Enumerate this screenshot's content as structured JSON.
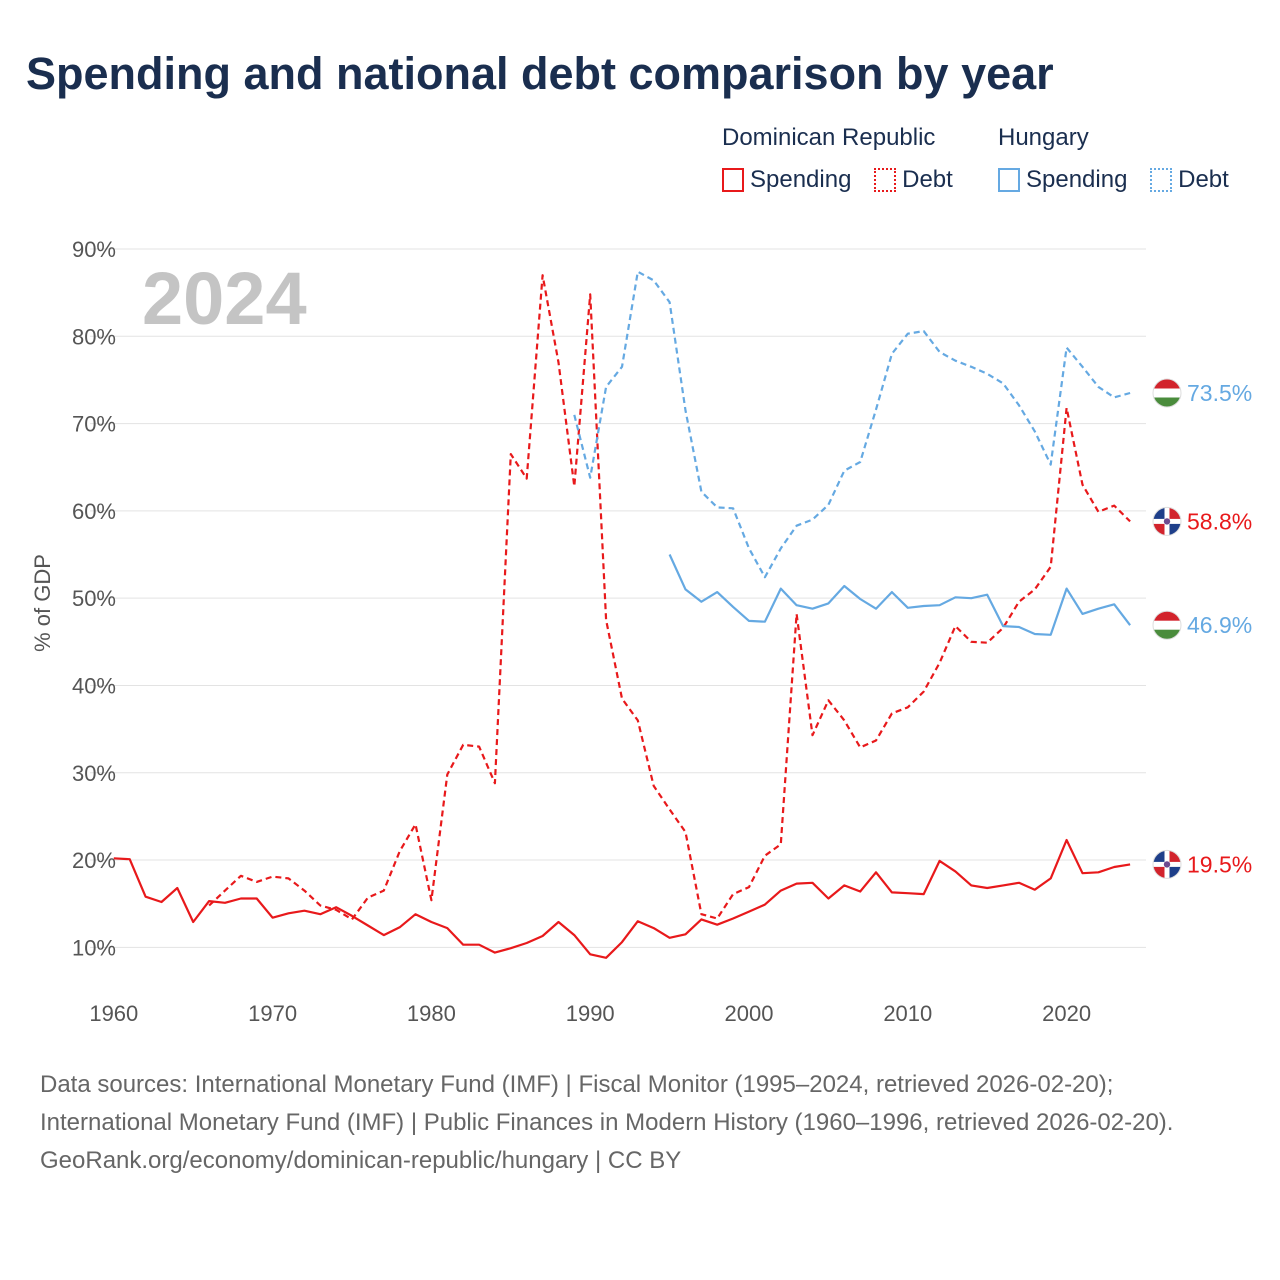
{
  "title": "Spending and national debt comparison by year",
  "year_watermark": "2024",
  "colors": {
    "dominican": "#e8191b",
    "hungary": "#65a9e2",
    "grid": "#e3e3e3",
    "axis_text": "#555555",
    "watermark": "#c4c4c4"
  },
  "legend": {
    "groups": [
      {
        "name": "Dominican Republic",
        "color": "#e8191b",
        "items": [
          {
            "label": "Spending",
            "style": "solid"
          },
          {
            "label": "Debt",
            "style": "dotted"
          }
        ]
      },
      {
        "name": "Hungary",
        "color": "#65a9e2",
        "items": [
          {
            "label": "Spending",
            "style": "solid"
          },
          {
            "label": "Debt",
            "style": "dotted"
          }
        ]
      }
    ]
  },
  "end_labels": [
    {
      "text": "73.5%",
      "value": 73.5,
      "color": "#65a9e2",
      "flag": "hungary-flag-icon"
    },
    {
      "text": "58.8%",
      "value": 58.8,
      "color": "#e8191b",
      "flag": "dominican-republic-flag-icon"
    },
    {
      "text": "46.9%",
      "value": 46.9,
      "color": "#65a9e2",
      "flag": "hungary-flag-icon"
    },
    {
      "text": "19.5%",
      "value": 19.5,
      "color": "#e8191b",
      "flag": "dominican-republic-flag-icon"
    }
  ],
  "chart_data": {
    "type": "line",
    "title": "Spending and national debt comparison by year",
    "xlabel": "",
    "ylabel": "% of GDP",
    "xlim": [
      1958.5,
      2025
    ],
    "ylim": [
      5,
      90
    ],
    "x_ticks": [
      1960,
      1970,
      1980,
      1990,
      2000,
      2010,
      2020
    ],
    "x_tick_labels": [
      "1960",
      "1970",
      "1980",
      "1990",
      "2000",
      "2010",
      "2020"
    ],
    "y_ticks": [
      10,
      20,
      30,
      40,
      50,
      60,
      70,
      80,
      90
    ],
    "y_tick_labels": [
      "10%",
      "20%",
      "30%",
      "40%",
      "50%",
      "60%",
      "70%",
      "80%",
      "90%"
    ],
    "grid": true,
    "legend_position": "top-right",
    "series": [
      {
        "name": "Dominican Republic Spending",
        "country": "Dominican Republic",
        "metric": "Spending",
        "color": "#e8191b",
        "style": "solid",
        "x": [
          1960,
          1961,
          1962,
          1963,
          1964,
          1965,
          1966,
          1967,
          1968,
          1969,
          1970,
          1971,
          1972,
          1973,
          1974,
          1975,
          1976,
          1977,
          1978,
          1979,
          1980,
          1981,
          1982,
          1983,
          1984,
          1985,
          1986,
          1987,
          1988,
          1989,
          1990,
          1991,
          1992,
          1993,
          1994,
          1995,
          1996,
          1997,
          1998,
          1999,
          2000,
          2001,
          2002,
          2003,
          2004,
          2005,
          2006,
          2007,
          2008,
          2009,
          2010,
          2011,
          2012,
          2013,
          2014,
          2015,
          2016,
          2017,
          2018,
          2019,
          2020,
          2021,
          2022,
          2023,
          2024
        ],
        "values": [
          20.2,
          20.1,
          15.8,
          15.2,
          16.8,
          12.9,
          15.3,
          15.1,
          15.6,
          15.6,
          13.4,
          13.9,
          14.2,
          13.8,
          14.6,
          13.6,
          12.5,
          11.4,
          12.3,
          13.8,
          12.9,
          12.2,
          10.3,
          10.3,
          9.4,
          9.9,
          10.5,
          11.3,
          12.9,
          11.4,
          9.2,
          8.8,
          10.6,
          13.0,
          12.2,
          11.1,
          11.5,
          13.2,
          12.6,
          13.3,
          14.1,
          14.9,
          16.5,
          17.3,
          17.4,
          15.6,
          17.1,
          16.4,
          18.6,
          16.3,
          16.2,
          16.1,
          19.9,
          18.7,
          17.1,
          16.8,
          17.1,
          17.4,
          16.6,
          17.9,
          22.3,
          18.5,
          18.6,
          19.2,
          19.5
        ]
      },
      {
        "name": "Dominican Republic Debt",
        "country": "Dominican Republic",
        "metric": "Debt",
        "color": "#e8191b",
        "style": "dashed",
        "x": [
          1966,
          1967,
          1968,
          1969,
          1970,
          1971,
          1972,
          1973,
          1974,
          1975,
          1976,
          1977,
          1978,
          1979,
          1980,
          1981,
          1982,
          1983,
          1984,
          1985,
          1986,
          1987,
          1988,
          1989,
          1990,
          1991,
          1992,
          1993,
          1994,
          1995,
          1996,
          1997,
          1998,
          1999,
          2000,
          2001,
          2002,
          2003,
          2004,
          2005,
          2006,
          2007,
          2008,
          2009,
          2010,
          2011,
          2012,
          2013,
          2014,
          2015,
          2016,
          2017,
          2018,
          2019,
          2020,
          2021,
          2022,
          2023,
          2024
        ],
        "values": [
          14.8,
          16.5,
          18.2,
          17.5,
          18.1,
          17.9,
          16.5,
          14.8,
          14.3,
          13.2,
          15.7,
          16.5,
          21.0,
          24.1,
          15.4,
          29.8,
          33.2,
          33.0,
          28.8,
          66.5,
          63.7,
          87.0,
          77.0,
          62.8,
          84.8,
          47.5,
          38.5,
          36.0,
          28.5,
          25.8,
          23.2,
          13.8,
          13.3,
          16.1,
          16.9,
          20.5,
          21.8,
          48.2,
          34.3,
          38.3,
          36.0,
          32.9,
          33.7,
          36.8,
          37.5,
          39.3,
          42.6,
          46.8,
          45.0,
          44.9,
          46.6,
          49.6,
          51.0,
          53.6,
          71.8,
          63.0,
          59.9,
          60.6,
          58.8
        ]
      },
      {
        "name": "Hungary Spending",
        "country": "Hungary",
        "metric": "Spending",
        "color": "#65a9e2",
        "style": "solid",
        "x": [
          1995,
          1996,
          1997,
          1998,
          1999,
          2000,
          2001,
          2002,
          2003,
          2004,
          2005,
          2006,
          2007,
          2008,
          2009,
          2010,
          2011,
          2012,
          2013,
          2014,
          2015,
          2016,
          2017,
          2018,
          2019,
          2020,
          2021,
          2022,
          2023,
          2024
        ],
        "values": [
          55.0,
          51.0,
          49.6,
          50.7,
          49.0,
          47.4,
          47.3,
          51.1,
          49.2,
          48.8,
          49.4,
          51.4,
          49.9,
          48.8,
          50.7,
          48.9,
          49.1,
          49.2,
          50.1,
          50.0,
          50.4,
          46.8,
          46.7,
          45.9,
          45.8,
          51.1,
          48.2,
          48.8,
          49.3,
          46.9
        ]
      },
      {
        "name": "Hungary Debt",
        "country": "Hungary",
        "metric": "Debt",
        "color": "#65a9e2",
        "style": "dashed",
        "x": [
          1989,
          1990,
          1991,
          1992,
          1993,
          1994,
          1995,
          1996,
          1997,
          1998,
          1999,
          2000,
          2001,
          2002,
          2003,
          2004,
          2005,
          2006,
          2007,
          2008,
          2009,
          2010,
          2011,
          2012,
          2013,
          2014,
          2015,
          2016,
          2017,
          2018,
          2019,
          2020,
          2021,
          2022,
          2023,
          2024
        ],
        "values": [
          71.0,
          63.8,
          74.2,
          76.5,
          87.4,
          86.4,
          83.9,
          71.5,
          62.2,
          60.4,
          60.3,
          55.7,
          52.4,
          55.7,
          58.3,
          59.0,
          60.7,
          64.6,
          65.6,
          71.6,
          78.0,
          80.3,
          80.6,
          78.2,
          77.2,
          76.5,
          75.7,
          74.6,
          72.1,
          69.1,
          65.3,
          78.7,
          76.5,
          74.2,
          73.0,
          73.5
        ]
      }
    ]
  },
  "sources": {
    "line1": "Data sources: International Monetary Fund (IMF) | Fiscal Monitor (1995–2024, retrieved 2026-02-20); International Monetary Fund (IMF) | Public Finances in Modern History (1960–1996, retrieved 2026-02-20).",
    "line2": "GeoRank.org/economy/dominican-republic/hungary | CC BY"
  }
}
